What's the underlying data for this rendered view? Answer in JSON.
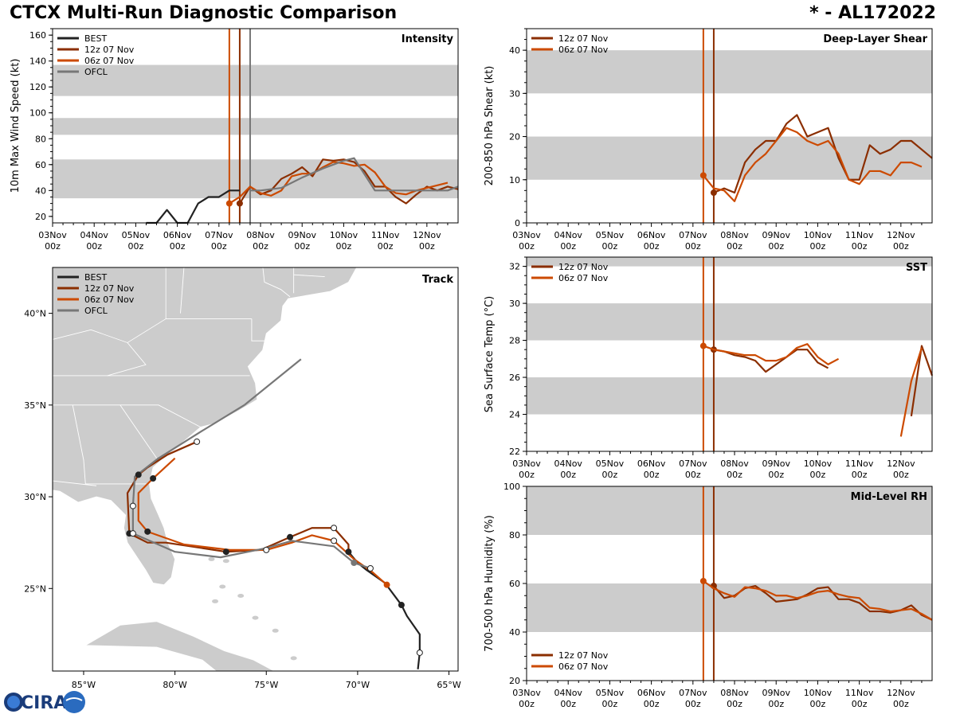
{
  "header": {
    "title": "CTCX Multi-Run Diagnostic Comparison",
    "storm_id": "* - AL172022"
  },
  "colors": {
    "best": "#222222",
    "run12z": "#8B2E00",
    "run06z": "#CC4A00",
    "ofcl": "#777777",
    "band": "#cccccc",
    "land": "#cccccc"
  },
  "logo": {
    "text": "CIRA"
  },
  "time_axis": {
    "tick_labels": [
      "03Nov",
      "04Nov",
      "05Nov",
      "06Nov",
      "07Nov",
      "08Nov",
      "09Nov",
      "10Nov",
      "11Nov",
      "12Nov"
    ],
    "tick_sublabel": "00z",
    "xlim": [
      0,
      9.75
    ]
  },
  "chart_data": [
    {
      "id": "intensity",
      "type": "line",
      "title": "Intensity",
      "ylabel": "10m Max Wind Speed (kt)",
      "ylim": [
        15,
        165
      ],
      "yticks": [
        20,
        40,
        60,
        80,
        100,
        120,
        140,
        160
      ],
      "bands": [
        [
          34,
          64
        ],
        [
          83,
          96
        ],
        [
          113,
          137
        ]
      ],
      "vlines": [
        {
          "x": 4.25,
          "series": "06z 07 Nov"
        },
        {
          "x": 4.5,
          "series": "12z 07 Nov"
        },
        {
          "x": 4.75,
          "series": "OFCL"
        }
      ],
      "legend": [
        "BEST",
        "12z 07 Nov",
        "06z 07 Nov",
        "OFCL"
      ],
      "series": [
        {
          "name": "BEST",
          "color_key": "best",
          "x": [
            2.25,
            2.5,
            2.75,
            3.0,
            3.25,
            3.5,
            3.75,
            4.0,
            4.25,
            4.5
          ],
          "y": [
            15,
            15,
            25,
            15,
            15,
            30,
            35,
            35,
            40,
            40
          ]
        },
        {
          "name": "12z 07 Nov",
          "color_key": "run12z",
          "x": [
            4.5,
            4.75,
            5.0,
            5.25,
            5.5,
            5.75,
            6.0,
            6.25,
            6.5,
            6.75,
            7.0,
            7.25,
            7.5,
            7.75,
            8.0,
            8.25,
            8.5,
            8.75,
            9.0,
            9.25,
            9.5,
            9.75
          ],
          "y": [
            30,
            43,
            37,
            40,
            49,
            53,
            58,
            51,
            64,
            63,
            64,
            62,
            55,
            43,
            43,
            35,
            30,
            37,
            43,
            40,
            43,
            41
          ],
          "marker_index": 0
        },
        {
          "name": "06z 07 Nov",
          "color_key": "run06z",
          "x": [
            4.25,
            4.5,
            4.75,
            5.0,
            5.25,
            5.5,
            5.75,
            6.0,
            6.25,
            6.5,
            6.75,
            7.0,
            7.25,
            7.5,
            7.75,
            8.0,
            8.25,
            8.5,
            8.75,
            9.0,
            9.25,
            9.5
          ],
          "y": [
            30,
            35,
            43,
            38,
            36,
            40,
            51,
            53,
            53,
            58,
            62,
            61,
            59,
            60,
            54,
            43,
            38,
            37,
            40,
            42,
            44,
            46
          ],
          "marker_index": 0
        },
        {
          "name": "OFCL",
          "color_key": "ofcl",
          "x": [
            4.75,
            5.0,
            5.5,
            6.0,
            6.5,
            7.0,
            7.25,
            7.75,
            8.5,
            9.5,
            9.75
          ],
          "y": [
            40,
            40,
            42,
            50,
            57,
            63,
            65,
            40,
            40,
            40,
            43
          ]
        }
      ]
    },
    {
      "id": "shear",
      "type": "line",
      "title": "Deep-Layer Shear",
      "ylabel": "200-850 hPa Shear (kt)",
      "ylim": [
        0,
        45
      ],
      "yticks": [
        0,
        10,
        20,
        30,
        40
      ],
      "bands": [
        [
          10,
          20
        ],
        [
          30,
          40
        ]
      ],
      "vlines": [
        {
          "x": 4.25,
          "series": "06z 07 Nov"
        },
        {
          "x": 4.5,
          "series": "12z 07 Nov"
        }
      ],
      "legend": [
        "12z 07 Nov",
        "06z 07 Nov"
      ],
      "series": [
        {
          "name": "12z 07 Nov",
          "color_key": "run12z",
          "x": [
            4.5,
            4.75,
            5.0,
            5.25,
            5.5,
            5.75,
            6.0,
            6.25,
            6.5,
            6.75,
            7.0,
            7.25,
            7.5,
            7.75,
            8.0,
            8.25,
            8.5,
            8.75,
            9.0,
            9.25,
            9.5,
            9.75
          ],
          "y": [
            7,
            8,
            7,
            14,
            17,
            19,
            19,
            23,
            25,
            20,
            21,
            22,
            15,
            10,
            10,
            18,
            16,
            17,
            19,
            19,
            17,
            15
          ],
          "marker_index": 0
        },
        {
          "name": "06z 07 Nov",
          "color_key": "run06z",
          "x": [
            4.25,
            4.5,
            4.75,
            5.0,
            5.25,
            5.5,
            5.75,
            6.0,
            6.25,
            6.5,
            6.75,
            7.0,
            7.25,
            7.5,
            7.75,
            8.0,
            8.25,
            8.5,
            8.75,
            9.0,
            9.25,
            9.5
          ],
          "y": [
            11,
            8,
            7.5,
            5,
            11,
            14,
            16,
            19,
            22,
            21,
            19,
            18,
            19,
            16,
            10,
            9,
            12,
            12,
            11,
            14,
            14,
            13
          ],
          "marker_index": 0
        }
      ]
    },
    {
      "id": "sst",
      "type": "line",
      "title": "SST",
      "ylabel": "Sea Surface Temp (°C)",
      "ylim": [
        22,
        32.5
      ],
      "yticks": [
        22,
        24,
        26,
        28,
        30,
        32
      ],
      "bands": [
        [
          24,
          26
        ],
        [
          28,
          30
        ],
        [
          32,
          32.5
        ]
      ],
      "vlines": [
        {
          "x": 4.25,
          "series": "06z 07 Nov"
        },
        {
          "x": 4.5,
          "series": "12z 07 Nov"
        }
      ],
      "legend": [
        "12z 07 Nov",
        "06z 07 Nov"
      ],
      "series": [
        {
          "name": "12z 07 Nov",
          "color_key": "run12z",
          "x": [
            4.5,
            4.75,
            5.0,
            5.25,
            5.5,
            5.75,
            6.0,
            6.25,
            6.5,
            6.75,
            7.0,
            7.25
          ],
          "y": [
            27.5,
            27.4,
            27.2,
            27.1,
            26.9,
            26.3,
            26.7,
            27.1,
            27.5,
            27.5,
            26.8,
            26.5
          ],
          "marker_index": 0
        },
        {
          "name": "12z 07 Nov (late)",
          "color_key": "run12z",
          "x": [
            9.25,
            9.5,
            9.75
          ],
          "y": [
            23.9,
            27.7,
            26.1
          ]
        },
        {
          "name": "06z 07 Nov",
          "color_key": "run06z",
          "x": [
            4.25,
            4.5,
            4.75,
            5.0,
            5.25,
            5.5,
            5.75,
            6.0,
            6.25,
            6.5,
            6.75,
            7.0,
            7.25,
            7.5
          ],
          "y": [
            27.7,
            27.5,
            27.4,
            27.3,
            27.2,
            27.2,
            26.9,
            26.9,
            27.1,
            27.6,
            27.8,
            27.1,
            26.7,
            27.0
          ],
          "marker_index": 0
        },
        {
          "name": "06z 07 Nov (late)",
          "color_key": "run06z",
          "x": [
            9.0,
            9.25,
            9.5
          ],
          "y": [
            22.8,
            25.8,
            27.6
          ]
        }
      ]
    },
    {
      "id": "rh",
      "type": "line",
      "title": "Mid-Level RH",
      "ylabel": "700-500 hPa Humidity (%)",
      "ylim": [
        20,
        100
      ],
      "yticks": [
        20,
        40,
        60,
        80,
        100
      ],
      "bands": [
        [
          40,
          60
        ],
        [
          80,
          100
        ]
      ],
      "vlines": [
        {
          "x": 4.25,
          "series": "06z 07 Nov"
        },
        {
          "x": 4.5,
          "series": "12z 07 Nov"
        }
      ],
      "legend": [
        "12z 07 Nov",
        "06z 07 Nov"
      ],
      "series": [
        {
          "name": "12z 07 Nov",
          "color_key": "run12z",
          "x": [
            4.5,
            4.75,
            5.0,
            5.25,
            5.5,
            5.75,
            6.0,
            6.25,
            6.5,
            6.75,
            7.0,
            7.25,
            7.5,
            7.75,
            8.0,
            8.25,
            8.5,
            8.75,
            9.0,
            9.25,
            9.5,
            9.75
          ],
          "y": [
            59,
            54,
            55,
            58,
            59,
            56,
            52.5,
            53,
            53.5,
            55.5,
            58,
            58.5,
            53.5,
            53.5,
            52,
            48.5,
            48.5,
            48,
            49,
            51,
            47,
            45
          ],
          "marker_index": 0
        },
        {
          "name": "06z 07 Nov",
          "color_key": "run06z",
          "x": [
            4.25,
            4.5,
            4.75,
            5.0,
            5.25,
            5.5,
            5.75,
            6.0,
            6.25,
            6.5,
            6.75,
            7.0,
            7.25,
            7.5,
            7.75,
            8.0,
            8.25,
            8.5,
            8.75,
            9.0,
            9.25,
            9.5,
            9.75
          ],
          "y": [
            61,
            58,
            56,
            54.5,
            58.5,
            58,
            57,
            55,
            55,
            54,
            55,
            56.5,
            57,
            55.5,
            54.5,
            54,
            50,
            49.5,
            48.5,
            49,
            49.5,
            47.5,
            45
          ],
          "marker_index": 0
        }
      ]
    },
    {
      "id": "track",
      "type": "scatter",
      "title": "Track",
      "xlim": [
        -86.7,
        -64.5
      ],
      "ylim": [
        20.5,
        42.5
      ],
      "xticks": [
        -85,
        -80,
        -75,
        -70,
        -65
      ],
      "xtick_labels": [
        "85°W",
        "80°W",
        "75°W",
        "70°W",
        "65°W"
      ],
      "yticks": [
        25,
        30,
        35,
        40
      ],
      "ytick_labels": [
        "25°N",
        "30°N",
        "35°N",
        "40°N"
      ],
      "legend": [
        "BEST",
        "12z 07 Nov",
        "06z 07 Nov",
        "OFCL"
      ],
      "series": [
        {
          "name": "BEST",
          "color_key": "best",
          "lon": [
            -66.7,
            -66.6,
            -66.6,
            -67.3,
            -67.6,
            -67.9,
            -68.5,
            -69.5,
            -70.0,
            -70.5
          ],
          "lat": [
            20.6,
            21.5,
            22.5,
            23.5,
            24.1,
            24.5,
            25.3,
            26.0,
            26.4,
            27.0
          ],
          "markers": [
            {
              "i": 1,
              "fill": "white"
            },
            {
              "i": 4,
              "fill": "dark"
            }
          ]
        },
        {
          "name": "12z 07 Nov",
          "color_key": "run12z",
          "lon": [
            -70.5,
            -70.5,
            -71.3,
            -72.5,
            -73.7,
            -75.3,
            -77.2,
            -78.5,
            -80.5,
            -81.5,
            -82.1,
            -82.5,
            -82.6,
            -82.0,
            -81.5,
            -80.4,
            -78.8
          ],
          "lat": [
            27.0,
            27.4,
            28.3,
            28.3,
            27.8,
            27.1,
            27.0,
            27.2,
            27.5,
            27.5,
            27.8,
            28.0,
            30.2,
            31.2,
            31.6,
            32.3,
            33.0
          ],
          "markers": [
            {
              "i": 0,
              "fill": "dark"
            },
            {
              "i": 2,
              "fill": "white"
            },
            {
              "i": 4,
              "fill": "dark"
            },
            {
              "i": 6,
              "fill": "dark"
            },
            {
              "i": 11,
              "fill": "dark"
            },
            {
              "i": 13,
              "fill": "dark"
            },
            {
              "i": 16,
              "fill": "white"
            }
          ]
        },
        {
          "name": "06z 07 Nov",
          "color_key": "run06z",
          "lon": [
            -68.4,
            -69.2,
            -70.2,
            -71.3,
            -72.5,
            -73.6,
            -75.0,
            -77.0,
            -79.5,
            -81.5,
            -82.0,
            -82.0,
            -81.2,
            -80.0
          ],
          "lat": [
            25.2,
            25.9,
            26.6,
            27.6,
            27.9,
            27.5,
            27.1,
            27.1,
            27.4,
            28.1,
            28.7,
            30.2,
            31.0,
            32.1
          ],
          "markers": [
            {
              "i": 0,
              "fill": "run"
            },
            {
              "i": 3,
              "fill": "white"
            },
            {
              "i": 6,
              "fill": "white"
            },
            {
              "i": 9,
              "fill": "dark"
            },
            {
              "i": 12,
              "fill": "dark"
            }
          ]
        },
        {
          "name": "OFCL",
          "color_key": "ofcl",
          "lon": [
            -69.3,
            -70.2,
            -71.3,
            -73.6,
            -75.0,
            -77.5,
            -80.0,
            -82.3,
            -82.3,
            -82.2,
            -80.9,
            -78.5,
            -76.2
          ],
          "lat": [
            26.1,
            26.4,
            27.3,
            27.6,
            27.2,
            26.7,
            27.0,
            28.0,
            29.5,
            31.1,
            32.1,
            33.6,
            35.0
          ],
          "extension": {
            "lon": [
              -76.2,
              -73.1
            ],
            "lat": [
              35.0,
              37.5
            ]
          },
          "markers": [
            {
              "i": 0,
              "fill": "white"
            },
            {
              "i": 1,
              "fill": "ofcl"
            },
            {
              "i": 7,
              "fill": "white"
            },
            {
              "i": 8,
              "fill": "white"
            }
          ]
        }
      ]
    }
  ]
}
